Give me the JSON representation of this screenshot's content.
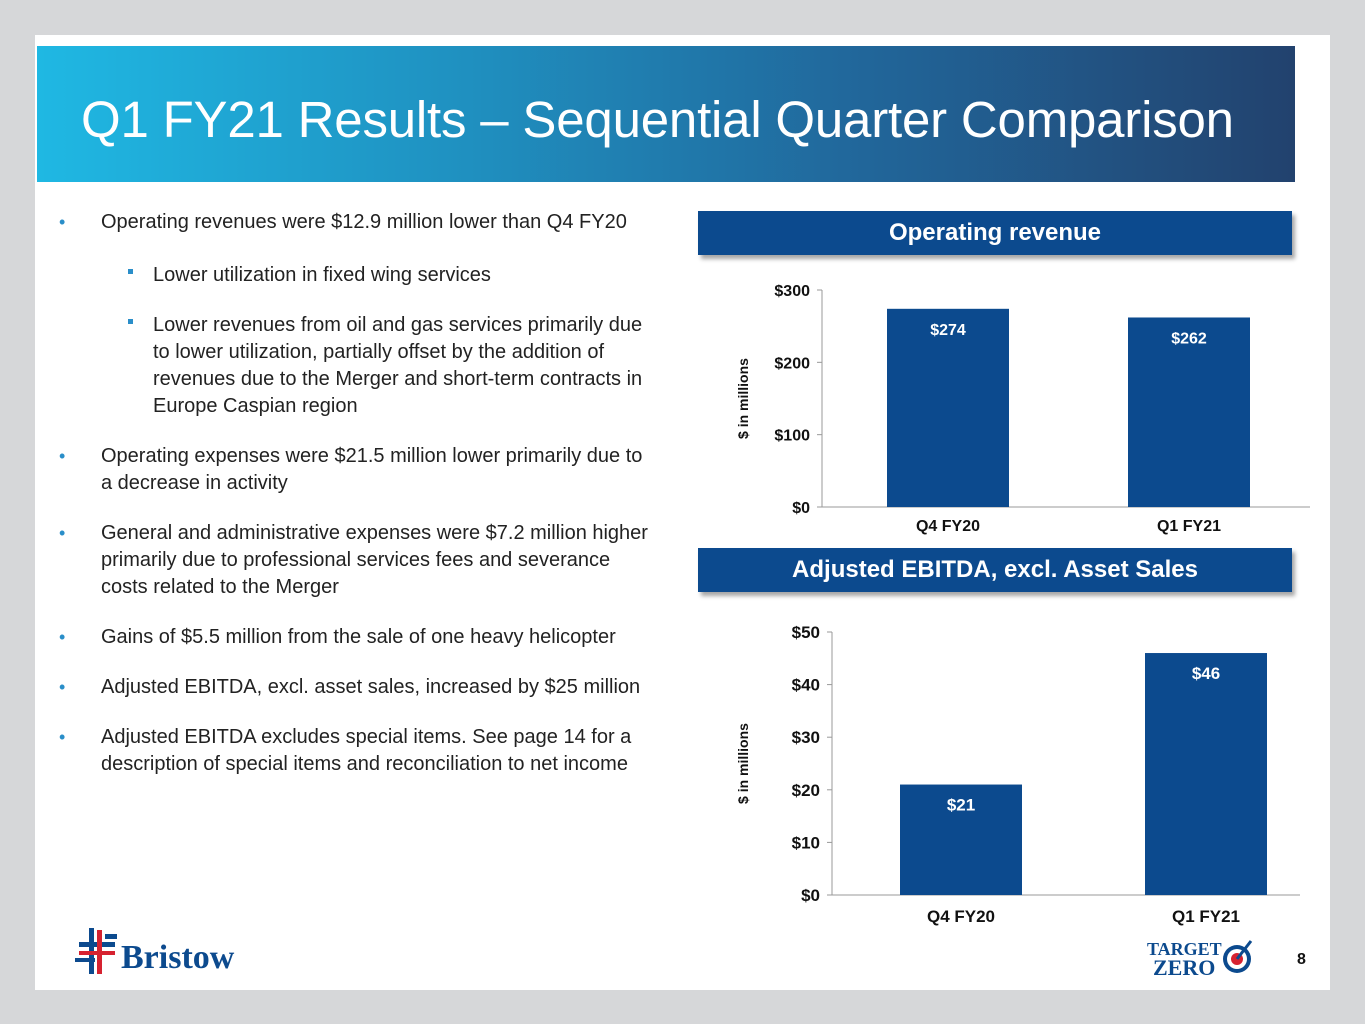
{
  "title": "Q1 FY21 Results – Sequential Quarter Comparison",
  "bullets": [
    {
      "level": 1,
      "text": "Operating revenues were $12.9 million lower than Q4 FY20"
    },
    {
      "level": 2,
      "text": "Lower utilization in fixed wing services"
    },
    {
      "level": 2,
      "text": "Lower revenues from oil and gas services primarily due to lower utilization, partially offset by the addition of revenues due to the Merger and short-term contracts in Europe Caspian region"
    },
    {
      "level": 1,
      "text": "Operating expenses were $21.5 million lower primarily due to a decrease in activity"
    },
    {
      "level": 1,
      "text": "General and administrative expenses were $7.2 million higher primarily due to professional services fees and severance costs related to the Merger"
    },
    {
      "level": 1,
      "text": "Gains of $5.5 million from the sale of one heavy helicopter"
    },
    {
      "level": 1,
      "text": "Adjusted EBITDA, excl. asset sales, increased by $25 million"
    },
    {
      "level": 1,
      "text": "Adjusted EBITDA excludes special items. See page 14 for a description of special items and reconciliation to net income"
    }
  ],
  "chart_data": [
    {
      "type": "bar",
      "title": "Operating revenue",
      "categories": [
        "Q4 FY20",
        "Q1 FY21"
      ],
      "values": [
        274,
        262
      ],
      "data_labels": [
        "$274",
        "$262"
      ],
      "ylabel": "$ in millions",
      "ylim": [
        0,
        300
      ],
      "yticks": [
        0,
        100,
        200,
        300
      ],
      "ytick_labels": [
        "$0",
        "$100",
        "$200",
        "$300"
      ],
      "bar_color": "#0c4a8e"
    },
    {
      "type": "bar",
      "title": "Adjusted EBITDA, excl. Asset Sales",
      "categories": [
        "Q4 FY20",
        "Q1 FY21"
      ],
      "values": [
        21,
        46
      ],
      "data_labels": [
        "$21",
        "$46"
      ],
      "ylabel": "$ in millions",
      "ylim": [
        0,
        50
      ],
      "yticks": [
        0,
        10,
        20,
        30,
        40,
        50
      ],
      "ytick_labels": [
        "$0",
        "$10",
        "$20",
        "$30",
        "$40",
        "$50"
      ],
      "bar_color": "#0c4a8e"
    }
  ],
  "logo": {
    "name": "Bristow"
  },
  "badge": {
    "line1": "TARGET",
    "line2": "ZERO"
  },
  "page_number": "8",
  "colors": {
    "brand_blue": "#0c4a8e",
    "bullet": "#2a8ec9",
    "logo_red": "#d62230"
  }
}
